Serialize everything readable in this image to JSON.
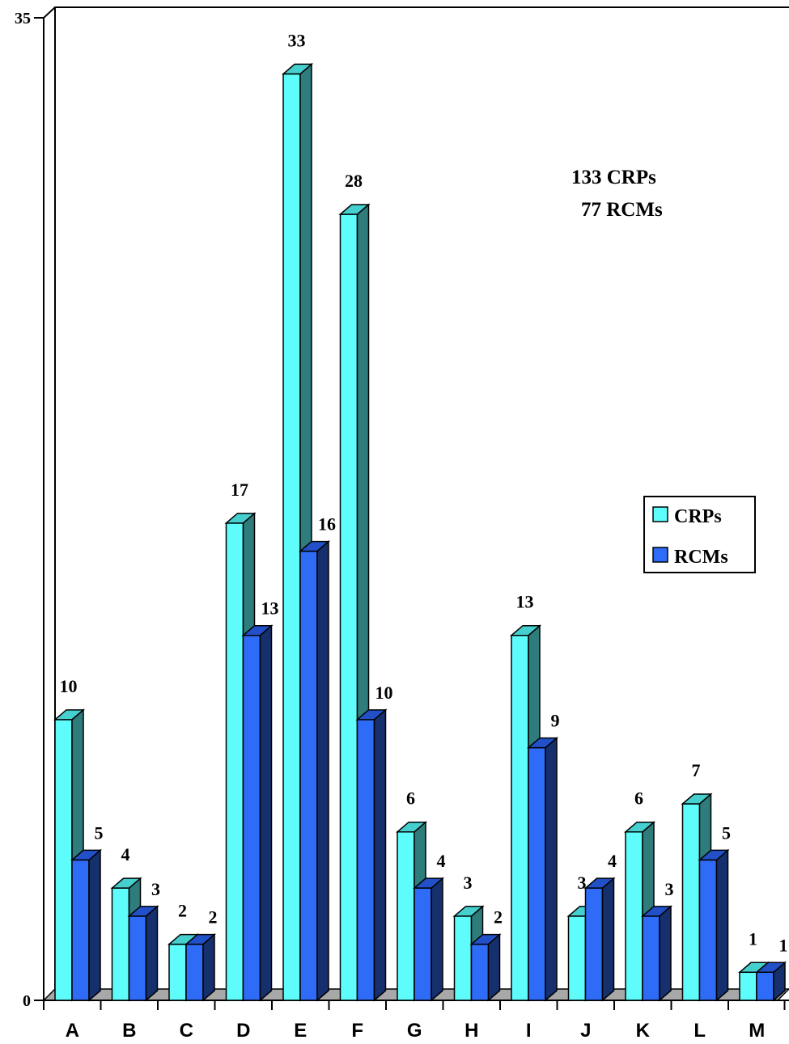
{
  "chart_data": {
    "type": "bar",
    "categories": [
      "A",
      "B",
      "C",
      "D",
      "E",
      "F",
      "G",
      "H",
      "I",
      "J",
      "K",
      "L",
      "M"
    ],
    "series": [
      {
        "name": "CRPs",
        "values": [
          10,
          4,
          2,
          17,
          33,
          28,
          6,
          3,
          13,
          3,
          6,
          7,
          1
        ]
      },
      {
        "name": "RCMs",
        "values": [
          5,
          3,
          2,
          13,
          16,
          10,
          4,
          2,
          9,
          4,
          3,
          5,
          1
        ]
      }
    ],
    "ylim": [
      0,
      35
    ],
    "yticks": [
      "0",
      "35"
    ],
    "annotation": [
      "133 CRPs",
      "77 RCMs"
    ],
    "legend": [
      "CRPs",
      "RCMs"
    ],
    "legend_position": "right",
    "style": "3d",
    "grid": false,
    "colors": {
      "CRPs": {
        "front": "#5ffcfc",
        "side": "#2e7c7c",
        "top": "#46cfcf"
      },
      "RCMs": {
        "front": "#2e6cf8",
        "side": "#16306e",
        "top": "#2250c8"
      },
      "floor_front": "#808080",
      "floor_top": "#a8a8a8"
    }
  }
}
